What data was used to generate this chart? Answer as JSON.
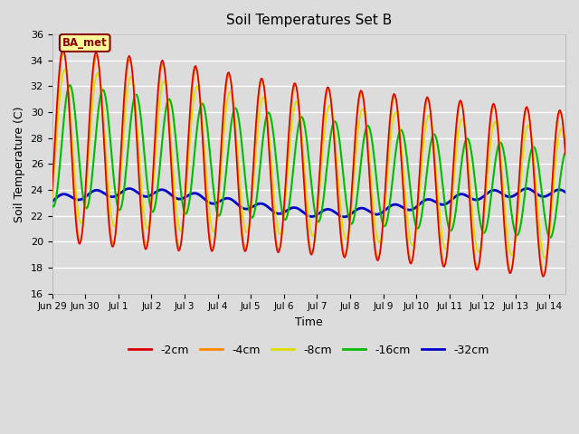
{
  "title": "Soil Temperatures Set B",
  "xlabel": "Time",
  "ylabel": "Soil Temperature (C)",
  "ylim": [
    16,
    36
  ],
  "yticks": [
    16,
    18,
    20,
    22,
    24,
    26,
    28,
    30,
    32,
    34,
    36
  ],
  "background_color": "#dcdcdc",
  "plot_bg_color": "#dcdcdc",
  "legend_label": "BA_met",
  "legend_box_color": "#ffff99",
  "legend_box_edge": "#8B0000",
  "colors": {
    "-2cm": "#dd0000",
    "-4cm": "#ff8800",
    "-8cm": "#dddd00",
    "-16cm": "#00bb00",
    "-32cm": "#0000cc"
  },
  "line_widths": {
    "-2cm": 1.2,
    "-4cm": 1.2,
    "-8cm": 1.2,
    "-16cm": 1.5,
    "-32cm": 2.0
  },
  "n_points": 480,
  "start_day": 0,
  "end_day": 15.5,
  "xtick_positions": [
    0,
    1,
    2,
    3,
    4,
    5,
    6,
    7,
    8,
    9,
    10,
    11,
    12,
    13,
    14,
    15
  ],
  "xtick_labels": [
    "Jun 29",
    "Jun 30",
    "Jul 1",
    "Jul 2",
    "Jul 3",
    "Jul 4",
    "Jul 5",
    "Jul 6",
    "Jul 7",
    "Jul 8",
    "Jul 9",
    "Jul 10",
    "Jul 11",
    "Jul 12",
    "Jul 13",
    "Jul 14"
  ],
  "grid_color": "#ffffff",
  "grid_alpha": 1.0,
  "grid_lw": 1.0
}
